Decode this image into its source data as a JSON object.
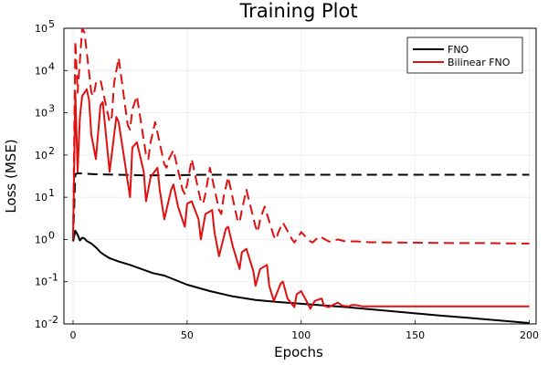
{
  "chart_data": {
    "type": "line",
    "title": "Training Plot",
    "xlabel": "Epochs",
    "ylabel": "Loss (MSE)",
    "xlim": [
      -4,
      203
    ],
    "ylim": [
      0.01,
      100000
    ],
    "yscale": "log",
    "xticks": [
      0,
      50,
      100,
      150,
      200
    ],
    "xtick_labels": [
      "0",
      "50",
      "100",
      "150",
      "200"
    ],
    "yticks": [
      {
        "value": 0.01,
        "base": "10",
        "exp": "-2"
      },
      {
        "value": 0.1,
        "base": "10",
        "exp": "-1"
      },
      {
        "value": 1,
        "base": "10",
        "exp": "0"
      },
      {
        "value": 10,
        "base": "10",
        "exp": "1"
      },
      {
        "value": 100,
        "base": "10",
        "exp": "2"
      },
      {
        "value": 1000,
        "base": "10",
        "exp": "3"
      },
      {
        "value": 10000,
        "base": "10",
        "exp": "4"
      },
      {
        "value": 100000,
        "base": "10",
        "exp": "5"
      }
    ],
    "grid": true,
    "legend_position": "top-right",
    "legend": [
      {
        "label": "FNO",
        "color": "#000000"
      },
      {
        "label": "Bilinear FNO",
        "color": "#e01010"
      }
    ],
    "series": [
      {
        "name": "FNO (train)",
        "legend_label": "FNO",
        "color": "#000000",
        "dash": "solid",
        "x": [
          0,
          1,
          2,
          3,
          4,
          5,
          6,
          8,
          10,
          12,
          14,
          16,
          18,
          20,
          25,
          30,
          35,
          40,
          50,
          60,
          70,
          80,
          90,
          100,
          120,
          140,
          160,
          180,
          200
        ],
        "y": [
          0.9,
          1.6,
          1.3,
          0.95,
          1.1,
          1.05,
          0.92,
          0.8,
          0.65,
          0.5,
          0.42,
          0.36,
          0.33,
          0.3,
          0.25,
          0.2,
          0.16,
          0.14,
          0.085,
          0.06,
          0.045,
          0.037,
          0.033,
          0.03,
          0.025,
          0.02,
          0.016,
          0.013,
          0.0105
        ]
      },
      {
        "name": "FNO (test)",
        "legend_label": "",
        "color": "#000000",
        "dash": "dashed",
        "x": [
          0,
          1,
          2,
          5,
          10,
          20,
          30,
          40,
          60,
          80,
          100,
          120,
          140,
          160,
          180,
          200
        ],
        "y": [
          1.0,
          35,
          37,
          36,
          35,
          34,
          33,
          33,
          34,
          34,
          34,
          34,
          34,
          34,
          34,
          34
        ]
      },
      {
        "name": "Bilinear FNO (train)",
        "legend_label": "Bilinear FNO",
        "color": "#e01010",
        "dash": "solid",
        "x": [
          0,
          1,
          2,
          3,
          4,
          6,
          7,
          8,
          10,
          12,
          13,
          14,
          16,
          19,
          20,
          22,
          25,
          26,
          28,
          31,
          32,
          34,
          37,
          38,
          40,
          43,
          44,
          46,
          49,
          50,
          52,
          55,
          56,
          58,
          61,
          62,
          64,
          67,
          68,
          70,
          73,
          74,
          76,
          79,
          80,
          82,
          85,
          86,
          88,
          91,
          92,
          94,
          97,
          98,
          100,
          103,
          104,
          106,
          109,
          110,
          112,
          115,
          116,
          118,
          121,
          122,
          124,
          127,
          128,
          130,
          140,
          150,
          160,
          170,
          180,
          190,
          200
        ],
        "y": [
          1,
          3000,
          40,
          800,
          2500,
          3600,
          2000,
          300,
          80,
          1500,
          1800,
          500,
          40,
          800,
          600,
          120,
          10,
          150,
          200,
          40,
          8,
          30,
          50,
          15,
          3,
          15,
          20,
          6,
          2,
          7,
          8,
          3,
          1,
          4,
          5,
          1.5,
          0.4,
          1.8,
          2,
          0.7,
          0.2,
          0.5,
          0.6,
          0.18,
          0.08,
          0.2,
          0.25,
          0.08,
          0.035,
          0.09,
          0.1,
          0.04,
          0.025,
          0.05,
          0.06,
          0.03,
          0.023,
          0.035,
          0.04,
          0.027,
          0.025,
          0.03,
          0.032,
          0.027,
          0.026,
          0.028,
          0.028,
          0.026,
          0.026,
          0.026,
          0.026,
          0.026,
          0.026,
          0.026,
          0.026,
          0.026,
          0.026
        ]
      },
      {
        "name": "Bilinear FNO (test)",
        "legend_label": "",
        "color": "#e01010",
        "dash": "dashed",
        "x": [
          0,
          1,
          2,
          4,
          5,
          8,
          9,
          10,
          12,
          16,
          17,
          18,
          20,
          24,
          25,
          26,
          28,
          32,
          33,
          34,
          36,
          40,
          41,
          42,
          44,
          48,
          49,
          50,
          52,
          56,
          57,
          58,
          60,
          64,
          65,
          66,
          68,
          72,
          73,
          74,
          76,
          80,
          81,
          82,
          84,
          88,
          89,
          90,
          92,
          96,
          97,
          98,
          100,
          104,
          105,
          106,
          108,
          112,
          113,
          114,
          116,
          120,
          121,
          122,
          124,
          130,
          140,
          150,
          160,
          170,
          180,
          190,
          200
        ],
        "y": [
          1,
          50000,
          3000,
          100000,
          80000,
          3000,
          2500,
          5000,
          6000,
          600,
          800,
          5000,
          20000,
          500,
          400,
          1200,
          2500,
          100,
          80,
          200,
          600,
          60,
          50,
          80,
          130,
          15,
          12,
          20,
          80,
          8,
          7,
          12,
          50,
          5,
          4,
          10,
          30,
          3,
          2.5,
          5,
          15,
          2,
          1.5,
          3,
          6,
          1.2,
          1,
          1.5,
          2.5,
          1,
          0.85,
          1,
          1.5,
          0.9,
          0.85,
          0.95,
          1.2,
          0.9,
          0.88,
          0.92,
          1,
          0.88,
          0.87,
          0.9,
          0.9,
          0.86,
          0.85,
          0.84,
          0.83,
          0.82,
          0.82,
          0.81,
          0.8
        ]
      }
    ]
  }
}
